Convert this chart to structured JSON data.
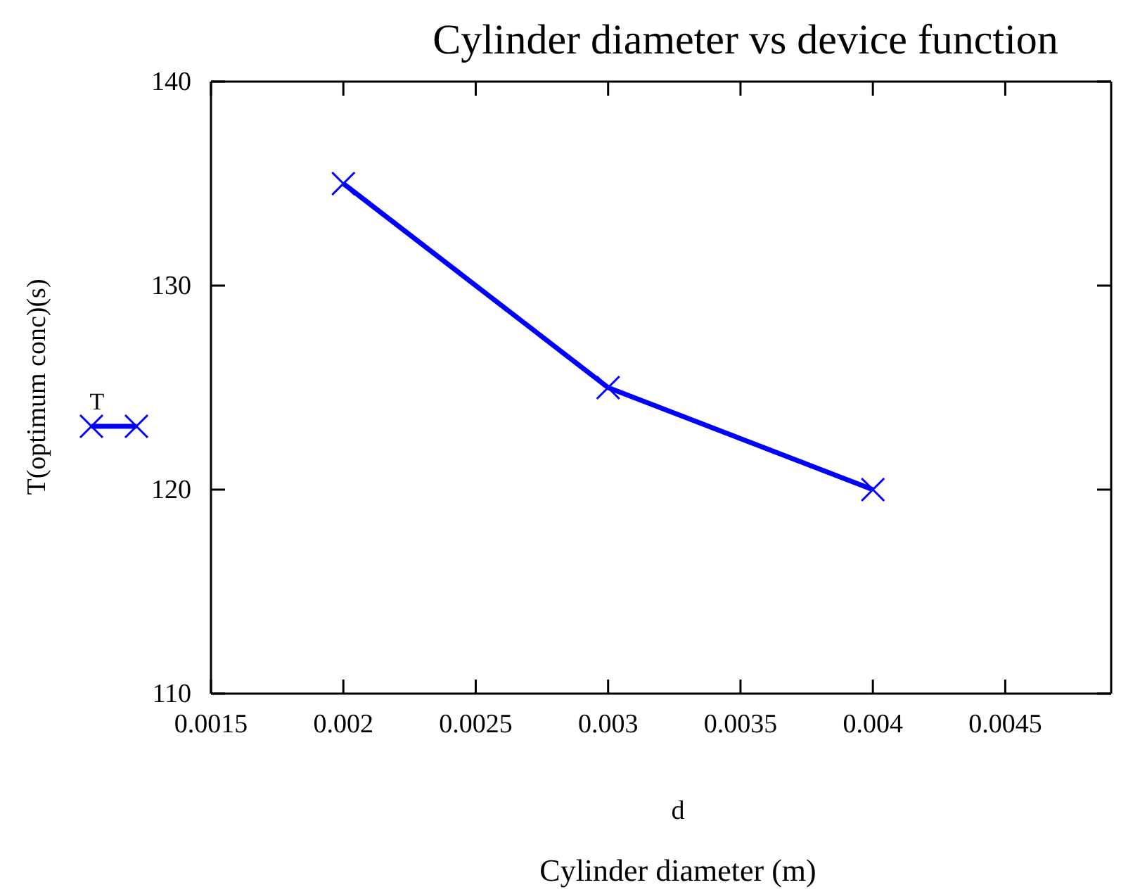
{
  "chart_data": {
    "type": "line",
    "title": "Cylinder diameter vs device function",
    "xlabel": "d",
    "ylabel": "T(optimum conc)(s)",
    "annotations": [
      "Cylinder diameter (m)"
    ],
    "x": [
      0.002,
      0.003,
      0.004
    ],
    "series": [
      {
        "name": "T",
        "color": "#0000ff",
        "values": [
          135,
          125,
          120
        ]
      }
    ],
    "xlim": [
      0.0015,
      0.0049
    ],
    "xticks": [
      0.0015,
      0.002,
      0.0025,
      0.003,
      0.0035,
      0.004,
      0.0045
    ],
    "ylim": [
      110,
      140
    ],
    "yticks": [
      110,
      120,
      130,
      140
    ],
    "marker": "cross",
    "line_style": "solid",
    "legend": "left",
    "grid": false
  }
}
